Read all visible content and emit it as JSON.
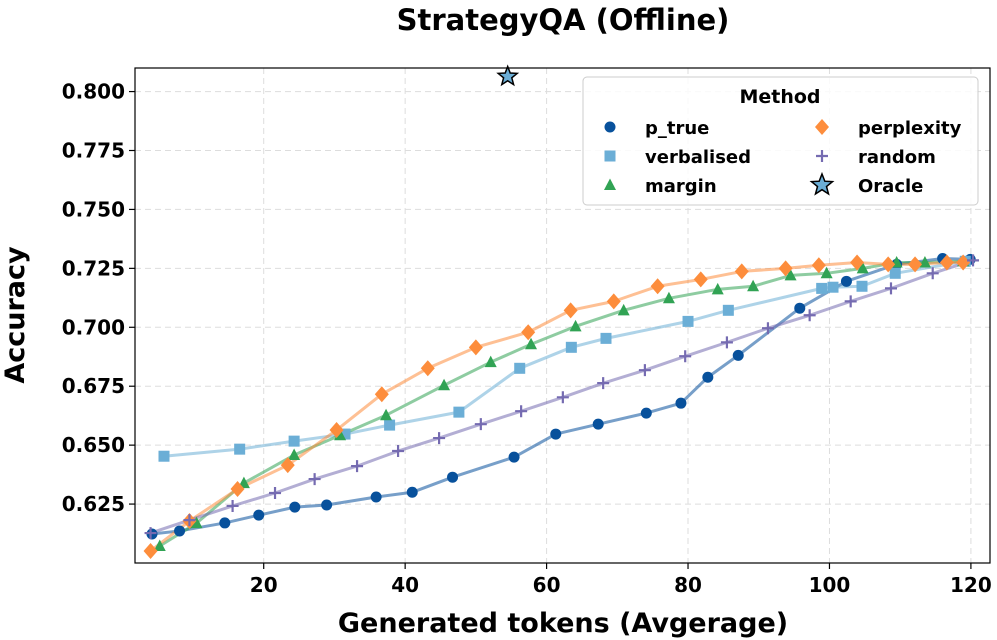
{
  "chart_data": {
    "type": "line",
    "title": "StrategyQA (Offline)",
    "xlabel": "Generated tokens (Avgerage)",
    "ylabel": "Accuracy",
    "xlim": [
      1.8,
      122.7
    ],
    "ylim": [
      0.6,
      0.81
    ],
    "xticks": [
      20,
      40,
      60,
      80,
      100,
      120
    ],
    "yticks": [
      0.625,
      0.65,
      0.675,
      0.7,
      0.725,
      0.75,
      0.775,
      0.8
    ],
    "ytick_labels": [
      "0.625",
      "0.650",
      "0.675",
      "0.700",
      "0.725",
      "0.750",
      "0.775",
      "0.800"
    ],
    "grid": true,
    "legend": {
      "title": "Method",
      "placement": "top-right"
    },
    "series": [
      {
        "name": "p_true",
        "color": "#08519c",
        "marker": "circle",
        "x": [
          4.2,
          8.1,
          14.5,
          19.3,
          24.4,
          28.9,
          35.9,
          41.0,
          46.7,
          55.4,
          61.3,
          67.3,
          74.1,
          79.0,
          82.8,
          87.1,
          95.8,
          102.4,
          109.5,
          116.0,
          119.9
        ],
        "y": [
          0.6123,
          0.6136,
          0.617,
          0.6203,
          0.6237,
          0.6246,
          0.628,
          0.63,
          0.6364,
          0.6449,
          0.6547,
          0.6589,
          0.6636,
          0.6678,
          0.6788,
          0.6881,
          0.7081,
          0.7195,
          0.7267,
          0.7292,
          0.7288
        ]
      },
      {
        "name": "verbalised",
        "color": "#6baed6",
        "marker": "square",
        "x": [
          5.9,
          16.6,
          24.3,
          31.5,
          37.8,
          47.6,
          56.2,
          63.5,
          68.4,
          80.0,
          85.7,
          98.9,
          100.5,
          104.6,
          109.3,
          119.2
        ],
        "y": [
          0.6453,
          0.6483,
          0.6517,
          0.6547,
          0.6585,
          0.664,
          0.6826,
          0.6915,
          0.6953,
          0.7025,
          0.7072,
          0.7165,
          0.717,
          0.7174,
          0.7229,
          0.728
        ]
      },
      {
        "name": "margin",
        "color": "#31a354",
        "marker": "triangle",
        "x": [
          5.3,
          10.5,
          17.2,
          24.3,
          30.8,
          37.3,
          45.5,
          52.1,
          57.8,
          64.1,
          70.9,
          77.3,
          84.2,
          89.2,
          94.5,
          99.6,
          104.7,
          109.5,
          113.5,
          118.9
        ],
        "y": [
          0.6072,
          0.6169,
          0.6339,
          0.6458,
          0.6542,
          0.6627,
          0.6754,
          0.6852,
          0.6928,
          0.7004,
          0.7072,
          0.7123,
          0.7161,
          0.7174,
          0.722,
          0.7229,
          0.725,
          0.7275,
          0.7275,
          0.728
        ]
      },
      {
        "name": "perplexity",
        "color": "#fd8d3c",
        "marker": "diamond",
        "x": [
          4.0,
          9.5,
          16.3,
          23.4,
          30.3,
          36.7,
          43.2,
          50.0,
          57.4,
          63.4,
          69.5,
          75.7,
          81.8,
          87.6,
          93.8,
          98.5,
          103.9,
          108.3,
          112.1,
          116.6,
          118.9
        ],
        "y": [
          0.6051,
          0.6178,
          0.6314,
          0.6415,
          0.6564,
          0.6716,
          0.6826,
          0.6915,
          0.6979,
          0.7072,
          0.711,
          0.7174,
          0.7203,
          0.7237,
          0.725,
          0.7263,
          0.7275,
          0.7267,
          0.7267,
          0.7275,
          0.7275
        ]
      },
      {
        "name": "random",
        "color": "#756bb1",
        "marker": "plus",
        "x": [
          4.0,
          9.5,
          15.6,
          21.6,
          27.2,
          33.2,
          39.0,
          44.8,
          50.7,
          56.4,
          62.3,
          68.0,
          73.9,
          79.6,
          85.5,
          91.3,
          97.2,
          103.0,
          108.7,
          114.6,
          120.3
        ],
        "y": [
          0.6127,
          0.6182,
          0.6242,
          0.6297,
          0.6356,
          0.6411,
          0.6475,
          0.653,
          0.6589,
          0.6644,
          0.6703,
          0.6763,
          0.6818,
          0.6877,
          0.6936,
          0.6996,
          0.7051,
          0.711,
          0.7165,
          0.7229,
          0.7284
        ]
      },
      {
        "name": "Oracle",
        "color": "#6baed6",
        "marker": "star",
        "x": [
          54.5
        ],
        "y": [
          0.8064
        ]
      }
    ]
  }
}
